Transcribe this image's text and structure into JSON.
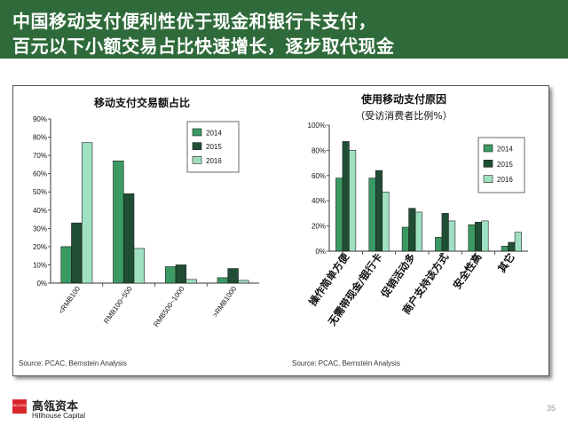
{
  "header": {
    "line1": "中国移动支付便利性优于现金和银行卡支付，",
    "line2": "百元以下小额交易占比快速增长，逐步取代现金"
  },
  "colors": {
    "header_bg": "#2f6b3a",
    "s2014": "#3a9a63",
    "s2015": "#1f4e35",
    "s2016": "#9fe0c2"
  },
  "chart_data": [
    {
      "type": "bar",
      "title": "移动支付交易额占比",
      "categories": [
        "<RMB100",
        "RMB100~500",
        "RMB500~1000",
        ">RMB1000"
      ],
      "series": [
        {
          "name": "2014",
          "values": [
            20,
            67,
            9,
            3
          ]
        },
        {
          "name": "2015",
          "values": [
            33,
            49,
            10,
            8
          ]
        },
        {
          "name": "2016",
          "values": [
            77,
            19,
            2,
            1.5
          ]
        }
      ],
      "y_ticks": [
        "0%",
        "10%",
        "20%",
        "30%",
        "40%",
        "50%",
        "60%",
        "70%",
        "80%",
        "90%"
      ],
      "ylim": [
        0,
        90
      ],
      "legend": "top-right",
      "grid": false
    },
    {
      "type": "bar",
      "title": "使用移动支付原因",
      "subtitle": "（受访消费者比例%）",
      "categories": [
        "操作简单方便",
        "无需带现金/银行卡",
        "促销活动多",
        "商户支持该方式",
        "安全性高",
        "其它"
      ],
      "series": [
        {
          "name": "2014",
          "values": [
            58,
            58,
            19,
            11,
            21,
            4
          ]
        },
        {
          "name": "2015",
          "values": [
            87,
            64,
            34,
            30,
            23,
            7
          ]
        },
        {
          "name": "2016",
          "values": [
            80,
            47,
            31,
            24,
            24,
            15
          ]
        }
      ],
      "y_ticks": [
        "0%",
        "20%",
        "40%",
        "60%",
        "80%",
        "100%"
      ],
      "ylim": [
        0,
        100
      ],
      "legend": "right",
      "grid": false
    }
  ],
  "sources": {
    "left": "Source: PCAC, Bernstein Analysis",
    "right": "Source: PCAC, Bernstein Analysis"
  },
  "footer": {
    "logo_box_text": "HILLHOUSE",
    "logo_cn": "高瓴资本",
    "logo_en": "Hillhouse Capital",
    "page_number": "35"
  }
}
